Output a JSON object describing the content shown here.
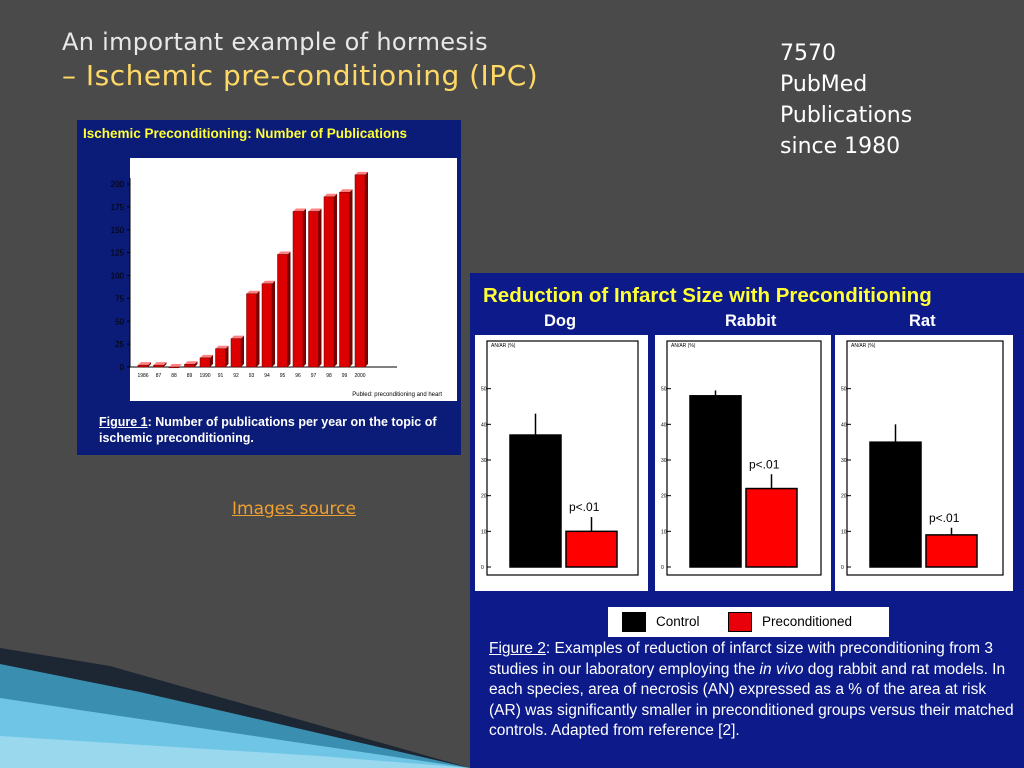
{
  "slide": {
    "title_line1": "An important example of hormesis",
    "title_line2": "– Ischemic pre-conditioning (IPC)",
    "stats": [
      "7570",
      "PubMed",
      "Publications",
      "since 1980"
    ],
    "images_source_link": "Images source"
  },
  "colors": {
    "background": "#4a4a4a",
    "figure_bg": "#0b1b78",
    "title_accent": "#ffd966",
    "link": "#f0a030",
    "bar_red": "#dd0000"
  },
  "figure1": {
    "title": "Ischemic Preconditioning: Number of Publications",
    "query_note": "Publed: preconditioning and heart",
    "caption_label": "Figure 1",
    "caption_text": ":  Number of publications per year on the topic of ischemic preconditioning."
  },
  "figure2": {
    "title": "Reduction of Infarct Size with Preconditioning",
    "species": [
      "Dog",
      "Rabbit",
      "Rat"
    ],
    "legend": {
      "control": "Control",
      "preconditioned": "Preconditioned"
    },
    "caption_label": "Figure 2",
    "caption_text_1": ":  Examples of reduction of infarct size with preconditioning from 3 studies in our laboratory employing the ",
    "caption_italic": "in vivo",
    "caption_text_2": " dog rabbit and rat models.  In each species, area of necrosis (AN) expressed as a % of the area at risk (AR) was significantly smaller in preconditioned groups versus their matched controls.  Adapted from reference [2]."
  },
  "chart_data": [
    {
      "type": "bar",
      "title": "Ischemic Preconditioning: Number of Publications",
      "categories": [
        "1986",
        "87",
        "88",
        "89",
        "1990",
        "91",
        "92",
        "93",
        "94",
        "95",
        "96",
        "97",
        "98",
        "99",
        "2000"
      ],
      "values": [
        2,
        2,
        0,
        3,
        10,
        20,
        31,
        80,
        91,
        123,
        170,
        170,
        186,
        191,
        210
      ],
      "ylim": [
        0,
        200
      ],
      "yticks": [
        0,
        25,
        50,
        75,
        100,
        125,
        150,
        175,
        200
      ],
      "grid": false
    },
    {
      "type": "bar",
      "title": "Dog",
      "ylabel": "AN/AR (%)",
      "ylim": [
        0,
        60
      ],
      "yticks": [
        0,
        10,
        20,
        30,
        40,
        50
      ],
      "categories": [
        "Control",
        "Preconditioned"
      ],
      "values": [
        37,
        10
      ],
      "errors": [
        6,
        4
      ],
      "annotation": "p<.01"
    },
    {
      "type": "bar",
      "title": "Rabbit",
      "ylabel": "AN/AR (%)",
      "ylim": [
        0,
        60
      ],
      "yticks": [
        0,
        10,
        20,
        30,
        40,
        50
      ],
      "categories": [
        "Control",
        "Preconditioned"
      ],
      "values": [
        48,
        22
      ],
      "errors": [
        1.5,
        4
      ],
      "annotation": "p<.01"
    },
    {
      "type": "bar",
      "title": "Rat",
      "ylabel": "AN/AR (%)",
      "ylim": [
        0,
        60
      ],
      "yticks": [
        0,
        10,
        20,
        30,
        40,
        50
      ],
      "categories": [
        "Control",
        "Preconditioned"
      ],
      "values": [
        35,
        9
      ],
      "errors": [
        5,
        2
      ],
      "annotation": "p<.01"
    }
  ]
}
